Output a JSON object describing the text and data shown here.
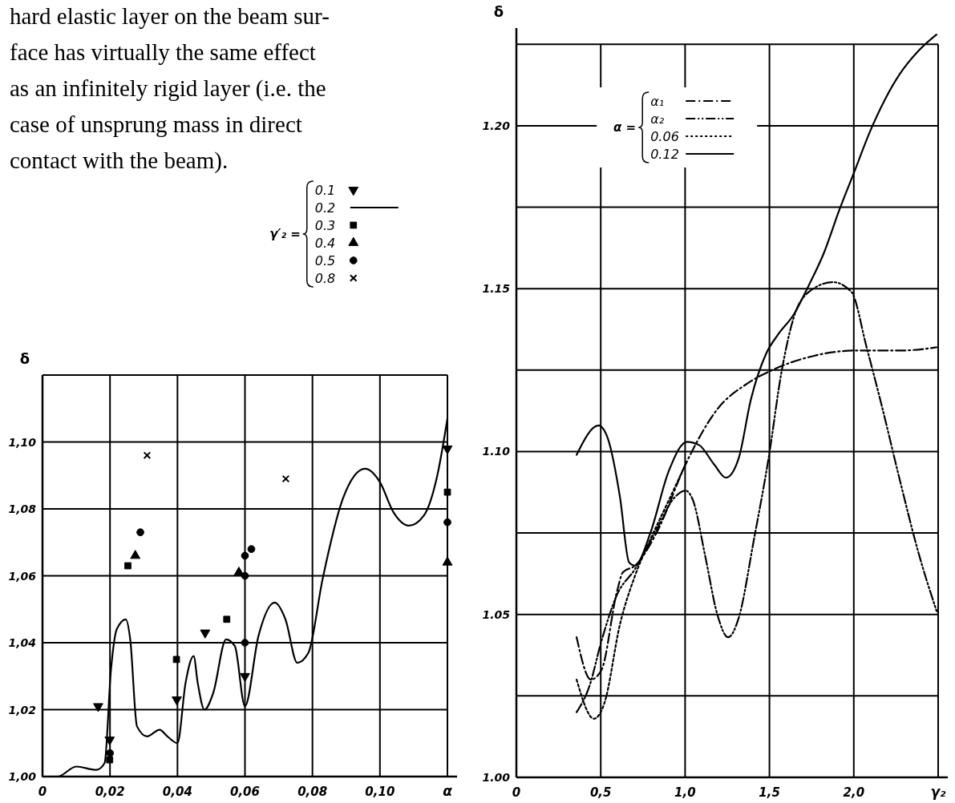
{
  "chart_data": [
    {
      "type": "line",
      "xlabel": "α",
      "ylabel": "δ",
      "legend_title": "γ′₂ =",
      "legend": "top",
      "grid": true,
      "annotations": [
        "hard elastic layer on the beam sur-",
        "face has virtually the same effect",
        "as an infinitely rigid layer (i.e. the",
        "case of unsprung mass in direct",
        "contact with the beam)."
      ],
      "xlim": [
        0,
        0.12
      ],
      "ylim": [
        1.0,
        1.12
      ],
      "xticks": [
        0,
        {
          "value": 0.02,
          "label": "0,02"
        },
        {
          "value": 0.04,
          "label": "0,04"
        },
        {
          "value": 0.06,
          "label": "0,06"
        },
        {
          "value": 0.08,
          "label": "0,08"
        },
        {
          "value": 0.1,
          "label": "0,10"
        },
        {
          "value": 0.12,
          "label": null
        }
      ],
      "yticks": [
        {
          "value": 1.0,
          "label": "1,00"
        },
        {
          "value": 1.02,
          "label": "1,02"
        },
        {
          "value": 1.04,
          "label": "1,04"
        },
        {
          "value": 1.06,
          "label": "1,06"
        },
        {
          "value": 1.08,
          "label": "1,08"
        },
        {
          "value": 1.1,
          "label": "1,10"
        },
        {
          "value": 1.12,
          "label": null
        }
      ],
      "series": [
        {
          "name": "0.1",
          "type": "scatter",
          "marker": "triangle-down",
          "color": "#000000",
          "x": [
            0.0165,
            0.0199,
            0.0398,
            0.0482,
            0.06,
            0.12
          ],
          "values": [
            1.021,
            1.011,
            1.023,
            1.043,
            1.03,
            1.098
          ]
        },
        {
          "name": "0.2",
          "type": "line",
          "line_style": "solid",
          "color": "#000000",
          "x": [
            0,
            0.0045,
            0.01,
            0.016,
            0.0184,
            0.0203,
            0.022,
            0.0247,
            0.026,
            0.028,
            0.031,
            0.0347,
            0.037,
            0.04,
            0.0424,
            0.0448,
            0.046,
            0.048,
            0.0506,
            0.0544,
            0.057,
            0.06,
            0.064,
            0.0688,
            0.072,
            0.0755,
            0.0788,
            0.083,
            0.089,
            0.0956,
            0.1,
            0.104,
            0.1086,
            0.113,
            0.117,
            0.12
          ],
          "values": [
            1.0,
            1.0,
            1.003,
            1.002,
            1.004,
            1.032,
            1.044,
            1.047,
            1.041,
            1.015,
            1.012,
            1.014,
            1.012,
            1.01,
            1.028,
            1.036,
            1.028,
            1.02,
            1.025,
            1.041,
            1.039,
            1.021,
            1.042,
            1.052,
            1.047,
            1.034,
            1.037,
            1.059,
            1.083,
            1.092,
            1.088,
            1.079,
            1.075,
            1.078,
            1.09,
            1.107
          ]
        },
        {
          "name": "0.3",
          "type": "scatter",
          "marker": "square",
          "color": "#000000",
          "x": [
            0.0253,
            0.0397,
            0.0546,
            0.0199,
            0.12
          ],
          "values": [
            1.063,
            1.035,
            1.047,
            1.005,
            1.085
          ]
        },
        {
          "name": "0.4",
          "type": "scatter",
          "marker": "triangle",
          "color": "#000000",
          "x": [
            0.0275,
            0.0582,
            0.12
          ],
          "values": [
            1.066,
            1.061,
            1.064
          ]
        },
        {
          "name": "0.5",
          "type": "scatter",
          "marker": "circle",
          "color": "#000000",
          "x": [
            0.029,
            0.06,
            0.0619,
            0.06,
            0.06,
            0.02,
            0.12
          ],
          "values": [
            1.073,
            1.066,
            1.068,
            1.06,
            1.04,
            1.007,
            1.076
          ]
        },
        {
          "name": "0.8",
          "type": "scatter",
          "marker": "cross",
          "color": "#000000",
          "x": [
            0.031,
            0.0721
          ],
          "values": [
            1.096,
            1.089
          ]
        }
      ]
    },
    {
      "type": "line",
      "xlabel": "γ₂",
      "ylabel": "δ",
      "legend_title": "α =",
      "legend": "top left",
      "grid": true,
      "xlim": [
        0,
        2.5
      ],
      "ylim": [
        1.0,
        1.23
      ],
      "xticks": [
        0,
        {
          "value": 0.5,
          "label": "0,5"
        },
        {
          "value": 1.0,
          "label": "1,0"
        },
        {
          "value": 1.5,
          "label": "1,5"
        },
        {
          "value": 2.0,
          "label": "2,0"
        },
        {
          "value": 2.5,
          "label": null
        }
      ],
      "yticks": [
        {
          "value": 1.0,
          "label": "1.00"
        },
        {
          "value": 1.025,
          "label": null
        },
        {
          "value": 1.05,
          "label": "1.05"
        },
        {
          "value": 1.075,
          "label": null
        },
        {
          "value": 1.1,
          "label": "1.10"
        },
        {
          "value": 1.125,
          "label": null
        },
        {
          "value": 1.15,
          "label": "1.15"
        },
        {
          "value": 1.175,
          "label": null
        },
        {
          "value": 1.2,
          "label": "1.20"
        },
        {
          "value": 1.225,
          "label": null
        }
      ],
      "series": [
        {
          "name": "α₁",
          "type": "line",
          "line_style": "dashdot",
          "color": "#000000",
          "x": [
            0.357,
            0.442,
            0.505,
            0.596,
            0.632,
            0.704,
            0.83,
            1.011,
            1.191,
            1.372,
            1.516,
            1.733,
            2.004,
            2.274,
            2.49
          ],
          "values": [
            1.043,
            1.03,
            1.033,
            1.057,
            1.063,
            1.065,
            1.075,
            1.097,
            1.113,
            1.121,
            1.125,
            1.129,
            1.131,
            1.131,
            1.132
          ]
        },
        {
          "name": "α₂",
          "type": "line",
          "line_style": "dashdotdot",
          "color": "#000000",
          "x": [
            0.357,
            0.433,
            0.505,
            0.596,
            0.704,
            0.83,
            0.939,
            1.002,
            1.047,
            1.119,
            1.191,
            1.255,
            1.318,
            1.408,
            1.498,
            1.57,
            1.643,
            1.733,
            1.877,
            1.986,
            2.076,
            2.166,
            2.274,
            2.383,
            2.491
          ],
          "values": [
            1.02,
            1.028,
            1.042,
            1.056,
            1.064,
            1.076,
            1.086,
            1.088,
            1.085,
            1.068,
            1.05,
            1.043,
            1.049,
            1.073,
            1.099,
            1.124,
            1.141,
            1.149,
            1.152,
            1.149,
            1.132,
            1.114,
            1.091,
            1.069,
            1.051
          ]
        },
        {
          "name": "0.06",
          "type": "line",
          "line_style": "dotted",
          "color": "#000000",
          "x": [
            0.357,
            0.46,
            0.523,
            0.614,
            0.704,
            0.794,
            0.903,
            1.011
          ],
          "values": [
            1.03,
            1.018,
            1.023,
            1.047,
            1.062,
            1.073,
            1.085,
            1.097
          ]
        },
        {
          "name": "0.12",
          "type": "line",
          "line_style": "solid",
          "color": "#000000",
          "x": [
            0.357,
            0.487,
            0.542,
            0.614,
            0.668,
            0.704,
            0.794,
            0.903,
            1.011,
            1.083,
            1.173,
            1.242,
            1.318,
            1.39,
            1.48,
            1.552,
            1.643,
            1.733,
            1.823,
            1.913,
            2.004,
            2.094,
            2.184,
            2.274,
            2.383,
            2.49
          ],
          "values": [
            1.099,
            1.108,
            1.104,
            1.086,
            1.066,
            1.065,
            1.075,
            1.094,
            1.103,
            1.102,
            1.096,
            1.092,
            1.098,
            1.116,
            1.13,
            1.136,
            1.142,
            1.151,
            1.161,
            1.174,
            1.186,
            1.198,
            1.208,
            1.216,
            1.223,
            1.228
          ]
        }
      ]
    }
  ]
}
